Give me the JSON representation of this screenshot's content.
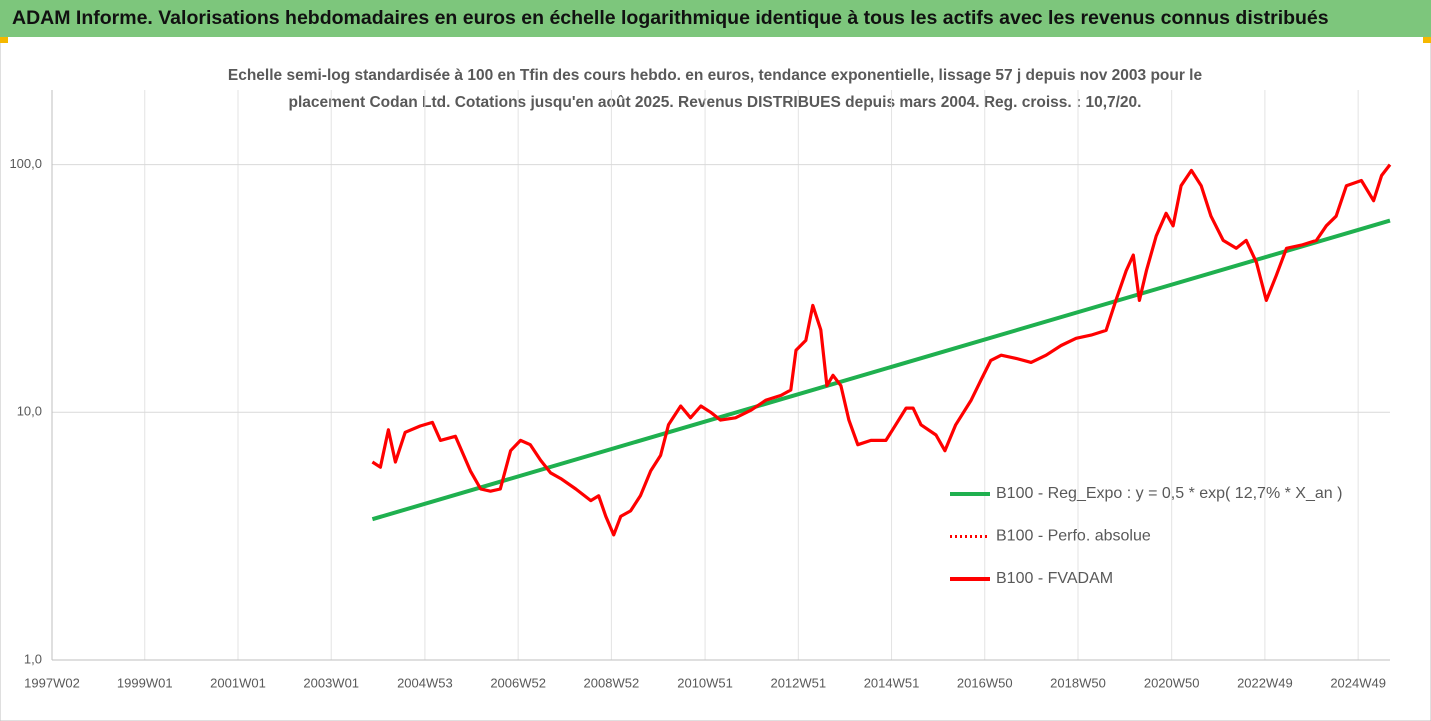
{
  "chart_data": {
    "type": "line",
    "title": "ADAM Informe. Valorisations hebdomadaires en euros en échelle logarithmique identique à tous les actifs avec les revenus connus distribués",
    "subtitle": [
      "Echelle semi-log standardisée à 100 en Tfin des cours hebdo. en euros, tendance exponentielle, lissage 57 j depuis nov 2003 pour le",
      "placement Codan Ltd. Cotations jusqu'en août 2025. Revenus DISTRIBUES depuis mars 2004. Reg. croiss. : 10,7/20."
    ],
    "log_y": true,
    "grid": true,
    "legend": "right",
    "xlim": [
      1997.02,
      2025.58
    ],
    "xticks": [
      {
        "value": 1997.02,
        "label": "1997W02"
      },
      {
        "value": 1999.0,
        "label": "1999W01"
      },
      {
        "value": 2000.99,
        "label": "2001W01"
      },
      {
        "value": 2002.98,
        "label": "2003W01"
      },
      {
        "value": 2004.98,
        "label": "2004W53"
      },
      {
        "value": 2006.97,
        "label": "2006W52"
      },
      {
        "value": 2008.96,
        "label": "2008W52"
      },
      {
        "value": 2010.96,
        "label": "2010W51"
      },
      {
        "value": 2012.95,
        "label": "2012W51"
      },
      {
        "value": 2014.94,
        "label": "2014W51"
      },
      {
        "value": 2016.93,
        "label": "2016W50"
      },
      {
        "value": 2018.92,
        "label": "2018W50"
      },
      {
        "value": 2020.92,
        "label": "2020W50"
      },
      {
        "value": 2022.91,
        "label": "2022W49"
      },
      {
        "value": 2024.9,
        "label": "2024W49"
      }
    ],
    "ylim": [
      1,
      200
    ],
    "yticks": [
      {
        "value": 1,
        "label": "1,0"
      },
      {
        "value": 10,
        "label": "10,0"
      },
      {
        "value": 100,
        "label": "100,0"
      }
    ],
    "series": [
      {
        "name": "B100 - Reg_Expo : y = 0,5 * exp( 12,7% *  X_an )",
        "color": "#1fb04f",
        "style": "solid",
        "x": [
          2003.86,
          2025.58
        ],
        "values": [
          3.7,
          59.4
        ]
      },
      {
        "name": "B100 - Perfo. absolue",
        "color": "#ff0000",
        "style": "dotted",
        "x": [],
        "values": []
      },
      {
        "name": "B100 - FVADAM",
        "color": "#ff0000",
        "style": "solid",
        "x": [
          2003.86,
          2004.03,
          2004.2,
          2004.35,
          2004.56,
          2004.88,
          2005.14,
          2005.31,
          2005.63,
          2005.95,
          2006.17,
          2006.38,
          2006.59,
          2006.81,
          2007.02,
          2007.23,
          2007.45,
          2007.66,
          2007.88,
          2008.2,
          2008.52,
          2008.69,
          2008.84,
          2009.01,
          2009.16,
          2009.37,
          2009.58,
          2009.8,
          2010.01,
          2010.18,
          2010.44,
          2010.65,
          2010.87,
          2011.08,
          2011.29,
          2011.61,
          2011.94,
          2012.26,
          2012.58,
          2012.79,
          2012.9,
          2013.11,
          2013.26,
          2013.43,
          2013.56,
          2013.69,
          2013.86,
          2014.03,
          2014.22,
          2014.5,
          2014.82,
          2015.03,
          2015.25,
          2015.4,
          2015.57,
          2015.89,
          2016.08,
          2016.31,
          2016.64,
          2016.85,
          2017.06,
          2017.28,
          2017.6,
          2017.92,
          2018.24,
          2018.56,
          2018.88,
          2019.2,
          2019.52,
          2019.73,
          2019.95,
          2020.1,
          2020.23,
          2020.38,
          2020.59,
          2020.8,
          2020.95,
          2021.12,
          2021.34,
          2021.55,
          2021.76,
          2022.02,
          2022.3,
          2022.51,
          2022.73,
          2022.94,
          2023.15,
          2023.37,
          2023.69,
          2024.01,
          2024.22,
          2024.43,
          2024.65,
          2024.97,
          2025.23,
          2025.4,
          2025.58
        ],
        "values": [
          6.3,
          6.0,
          8.5,
          6.3,
          8.3,
          8.8,
          9.1,
          7.7,
          8.0,
          5.8,
          4.9,
          4.8,
          4.9,
          7.0,
          7.7,
          7.4,
          6.4,
          5.7,
          5.4,
          4.9,
          4.4,
          4.6,
          3.8,
          3.2,
          3.8,
          4.0,
          4.6,
          5.8,
          6.7,
          8.9,
          10.6,
          9.5,
          10.6,
          10.0,
          9.3,
          9.5,
          10.2,
          11.2,
          11.7,
          12.3,
          17.8,
          19.5,
          27.0,
          21.5,
          12.8,
          14.1,
          12.8,
          9.3,
          7.4,
          7.7,
          7.7,
          8.9,
          10.4,
          10.4,
          8.9,
          8.1,
          7.0,
          8.9,
          11.2,
          13.5,
          16.2,
          17.0,
          16.5,
          15.9,
          17.0,
          18.6,
          19.9,
          20.5,
          21.4,
          28.3,
          37.3,
          43.1,
          28.3,
          37.3,
          51.5,
          63.6,
          56.6,
          82.2,
          94.7,
          82.2,
          61.9,
          49.4,
          45.9,
          49.4,
          40.2,
          28.3,
          35.6,
          45.9,
          47.3,
          49.4,
          56.6,
          61.9,
          82.2,
          86.2,
          71.5,
          90.3,
          100
        ]
      }
    ]
  }
}
